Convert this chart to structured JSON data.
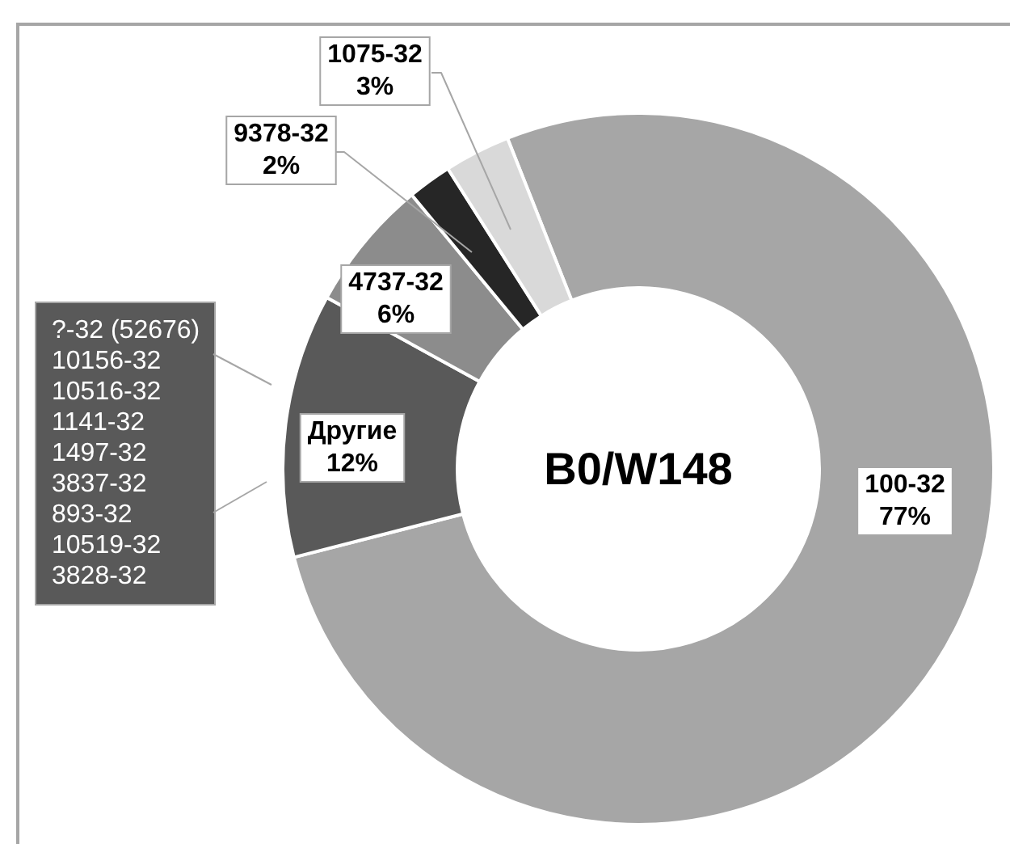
{
  "chart_data": {
    "type": "donut",
    "title": "B0/W148",
    "categories": [
      "100-32",
      "Другие",
      "4737-32",
      "9378-32",
      "1075-32"
    ],
    "values": [
      77,
      12,
      6,
      2,
      3
    ],
    "colors": [
      "#a6a6a6",
      "#595959",
      "#8c8c8c",
      "#262626",
      "#d9d9d9"
    ],
    "value_labels": [
      "77%",
      "12%",
      "6%",
      "2%",
      "3%"
    ],
    "annotations": [
      "?-32 (52676)",
      "10156-32",
      "10516-32",
      "1141-32",
      "1497-32",
      "3837-32",
      "893-32",
      "10519-32",
      "3828-32"
    ]
  }
}
